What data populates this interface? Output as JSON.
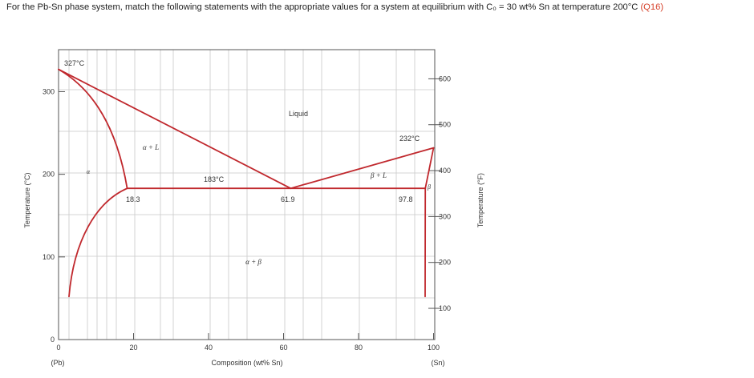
{
  "question": {
    "text": "For the Pb-Sn phase system, match the following statements with the appropriate values for a system at equilibrium with C₀ = 30 wt% Sn at temperature 200°C",
    "ref": "(Q16)"
  },
  "diagram": {
    "x_axis": {
      "title": "Composition (wt% Sn)",
      "ticks": [
        "0",
        "20",
        "40",
        "60",
        "80",
        "100"
      ],
      "left_end": "(Pb)",
      "right_end": "(Sn)"
    },
    "y_axis_left": {
      "title": "Temperature (°C)",
      "ticks": [
        "0",
        "100",
        "200",
        "300"
      ]
    },
    "y_axis_right": {
      "title": "Temperature (°F)",
      "ticks": [
        "100",
        "200",
        "300",
        "400",
        "500",
        "600"
      ]
    },
    "temperature_labels": {
      "pb_melt": "327°C",
      "sn_melt": "232°C",
      "eutectic": "183°C"
    },
    "composition_labels": {
      "alpha_max": "18.3",
      "eutectic": "61.9",
      "beta_min": "97.8"
    },
    "regions": {
      "liquid": "Liquid",
      "alpha_liquid": "α + L",
      "beta_liquid": "β + L",
      "alpha": "α",
      "beta": "β",
      "alpha_beta": "α + β"
    },
    "colors": {
      "phase_lines": "#c0282d",
      "grid": "#c8c8c8",
      "frame": "#555555"
    }
  }
}
